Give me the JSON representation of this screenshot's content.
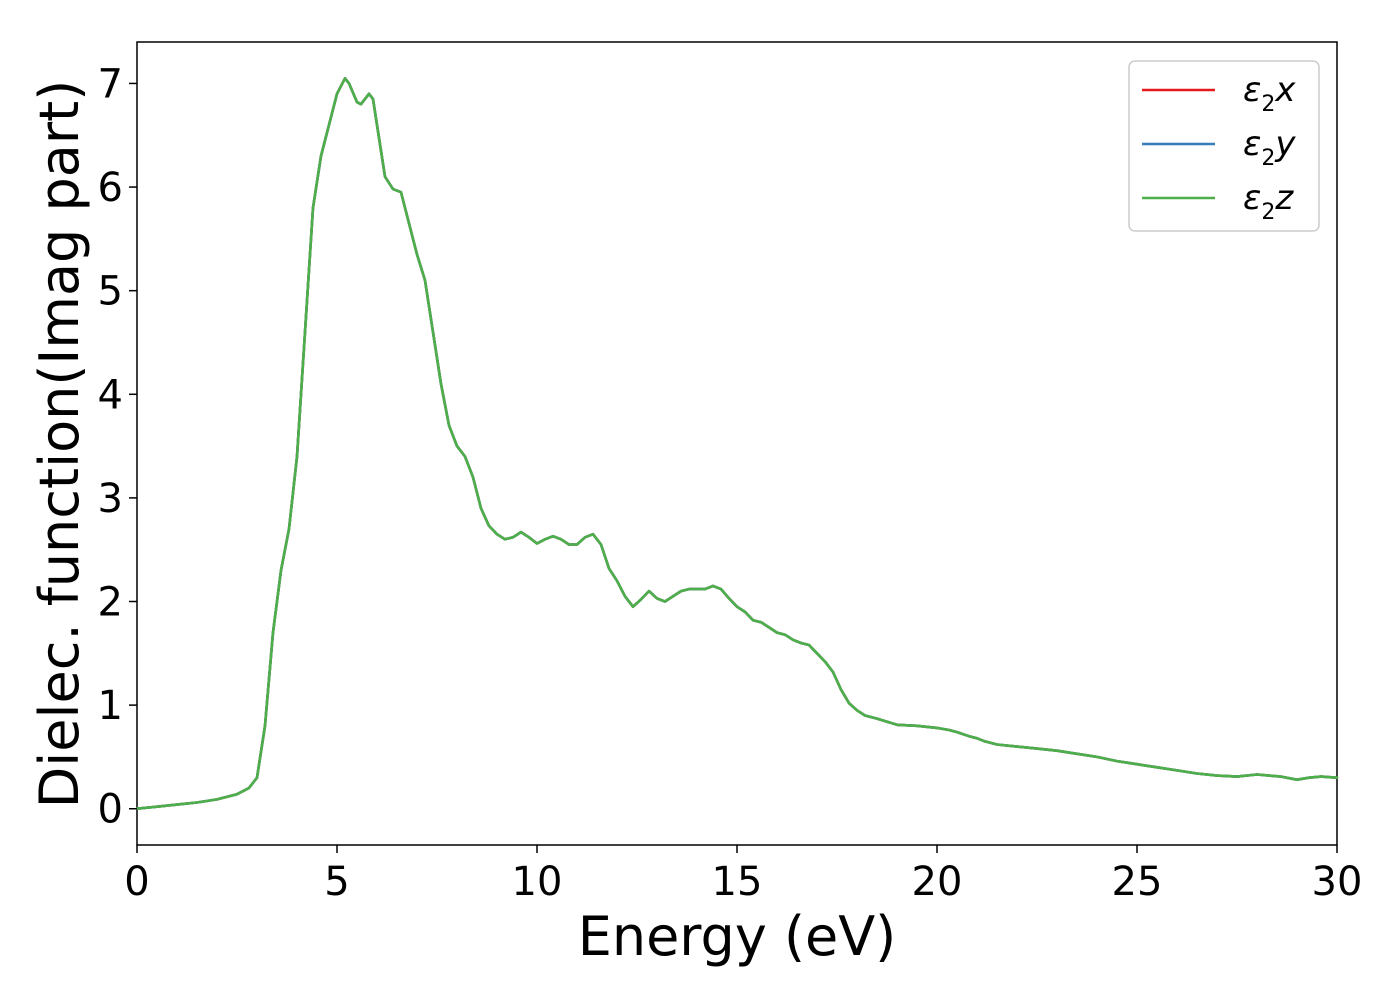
{
  "chart_data": {
    "type": "line",
    "title": "",
    "xlabel": "Energy (eV)",
    "ylabel": "Dielec. function(Imag part)",
    "xlim": [
      0,
      30
    ],
    "ylim": [
      -0.35,
      7.4
    ],
    "xticks": [
      0,
      5,
      10,
      15,
      20,
      25,
      30
    ],
    "yticks": [
      0,
      1,
      2,
      3,
      4,
      5,
      6,
      7
    ],
    "grid": false,
    "legend_position": "top-right",
    "series": [
      {
        "name": "ε2x",
        "symbol": "ε",
        "sub": "2",
        "axis": "x",
        "color": "#e41a1c"
      },
      {
        "name": "ε2y",
        "symbol": "ε",
        "sub": "2",
        "axis": "y",
        "color": "#377eb8"
      },
      {
        "name": "ε2z",
        "symbol": "ε",
        "sub": "2",
        "axis": "z",
        "color": "#4daf4a"
      }
    ],
    "x": [
      0,
      0.5,
      1.0,
      1.5,
      2.0,
      2.5,
      2.8,
      3.0,
      3.2,
      3.4,
      3.6,
      3.8,
      4.0,
      4.2,
      4.4,
      4.6,
      4.8,
      5.0,
      5.2,
      5.3,
      5.5,
      5.6,
      5.8,
      5.9,
      6.0,
      6.2,
      6.4,
      6.6,
      6.8,
      7.0,
      7.2,
      7.4,
      7.6,
      7.8,
      8.0,
      8.2,
      8.4,
      8.6,
      8.8,
      9.0,
      9.2,
      9.4,
      9.6,
      9.8,
      10.0,
      10.2,
      10.4,
      10.6,
      10.8,
      11.0,
      11.2,
      11.4,
      11.6,
      11.8,
      12.0,
      12.2,
      12.4,
      12.6,
      12.8,
      13.0,
      13.2,
      13.4,
      13.6,
      13.8,
      14.0,
      14.2,
      14.4,
      14.6,
      14.8,
      15.0,
      15.2,
      15.4,
      15.6,
      15.8,
      16.0,
      16.2,
      16.4,
      16.6,
      16.8,
      17.0,
      17.2,
      17.4,
      17.6,
      17.8,
      18.0,
      18.2,
      18.5,
      19.0,
      19.5,
      20.0,
      20.3,
      20.5,
      20.8,
      21.0,
      21.2,
      21.5,
      22.0,
      22.5,
      23.0,
      23.5,
      24.0,
      24.5,
      25.0,
      25.5,
      26.0,
      26.5,
      27.0,
      27.5,
      28.0,
      28.3,
      28.6,
      29.0,
      29.3,
      29.6,
      30.0
    ],
    "y": [
      0.0,
      0.02,
      0.04,
      0.06,
      0.09,
      0.14,
      0.2,
      0.3,
      0.8,
      1.7,
      2.3,
      2.7,
      3.4,
      4.6,
      5.8,
      6.3,
      6.6,
      6.9,
      7.05,
      7.0,
      6.82,
      6.8,
      6.9,
      6.85,
      6.6,
      6.1,
      5.98,
      5.95,
      5.65,
      5.35,
      5.1,
      4.6,
      4.1,
      3.7,
      3.5,
      3.4,
      3.2,
      2.9,
      2.73,
      2.65,
      2.6,
      2.62,
      2.67,
      2.62,
      2.56,
      2.6,
      2.63,
      2.6,
      2.55,
      2.55,
      2.62,
      2.65,
      2.55,
      2.32,
      2.2,
      2.05,
      1.95,
      2.02,
      2.1,
      2.03,
      2.0,
      2.05,
      2.1,
      2.12,
      2.12,
      2.12,
      2.15,
      2.12,
      2.03,
      1.95,
      1.9,
      1.82,
      1.8,
      1.75,
      1.7,
      1.68,
      1.63,
      1.6,
      1.58,
      1.5,
      1.42,
      1.32,
      1.15,
      1.02,
      0.95,
      0.9,
      0.87,
      0.81,
      0.8,
      0.78,
      0.76,
      0.74,
      0.7,
      0.68,
      0.65,
      0.62,
      0.6,
      0.58,
      0.56,
      0.53,
      0.5,
      0.46,
      0.43,
      0.4,
      0.37,
      0.34,
      0.32,
      0.31,
      0.33,
      0.32,
      0.31,
      0.28,
      0.3,
      0.31,
      0.3
    ]
  }
}
